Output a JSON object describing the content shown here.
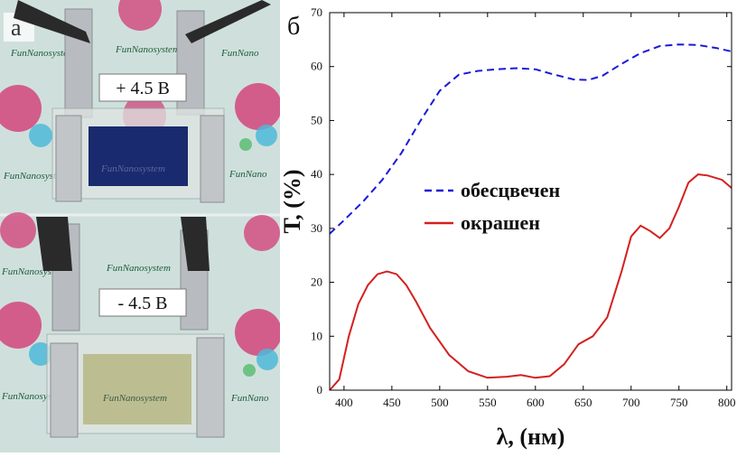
{
  "photo": {
    "panel_label": "а",
    "brand_text": "FunNanosystem",
    "brand_text_short": "FunNano",
    "top_voltage": "+ 4.5 В",
    "bottom_voltage": "- 4.5 В",
    "colors": {
      "background": "#cfe0dc",
      "bubble_pink": "#d2457d",
      "bubble_cyan": "#4fb8d8",
      "bubble_green": "#63c07a",
      "colored_film": "#1a2a6e",
      "bleached_film": "#b8b98a",
      "electrode": "#b8bcc0",
      "clip": "#2a2a2a"
    }
  },
  "chart_data": {
    "panel_label": "б",
    "type": "line",
    "xlabel": "λ, (нм)",
    "ylabel": "Т, (%)",
    "xlim": [
      385,
      805
    ],
    "ylim": [
      0,
      70
    ],
    "xticks": [
      400,
      450,
      500,
      550,
      600,
      650,
      700,
      750,
      800
    ],
    "yticks": [
      0,
      10,
      20,
      30,
      40,
      50,
      60,
      70
    ],
    "legend_position": "center",
    "series": [
      {
        "name": "обесцвечен",
        "style": "dashed",
        "color": "#1a1adb",
        "x": [
          385,
          400,
          420,
          440,
          460,
          480,
          500,
          520,
          540,
          560,
          580,
          600,
          620,
          640,
          655,
          670,
          690,
          710,
          730,
          750,
          770,
          790,
          805
        ],
        "y": [
          29,
          31.5,
          35,
          39,
          44,
          50,
          55.5,
          58.5,
          59.2,
          59.5,
          59.7,
          59.5,
          58.5,
          57.6,
          57.5,
          58.3,
          60.5,
          62.5,
          63.8,
          64.1,
          64,
          63.4,
          62.8
        ]
      },
      {
        "name": "окрашен",
        "style": "solid",
        "color": "#d42020",
        "x": [
          385,
          395,
          405,
          415,
          425,
          435,
          445,
          455,
          465,
          475,
          490,
          510,
          530,
          550,
          570,
          585,
          600,
          615,
          630,
          645,
          660,
          675,
          690,
          700,
          710,
          720,
          730,
          740,
          750,
          760,
          770,
          780,
          795,
          805
        ],
        "y": [
          0,
          2,
          10,
          16,
          19.5,
          21.5,
          22,
          21.5,
          19.5,
          16.5,
          11.5,
          6.5,
          3.5,
          2.3,
          2.5,
          2.8,
          2.3,
          2.6,
          4.8,
          8.5,
          10,
          13.5,
          22,
          28.5,
          30.5,
          29.5,
          28.2,
          30,
          34,
          38.5,
          40,
          39.8,
          39,
          37.5
        ]
      }
    ]
  }
}
